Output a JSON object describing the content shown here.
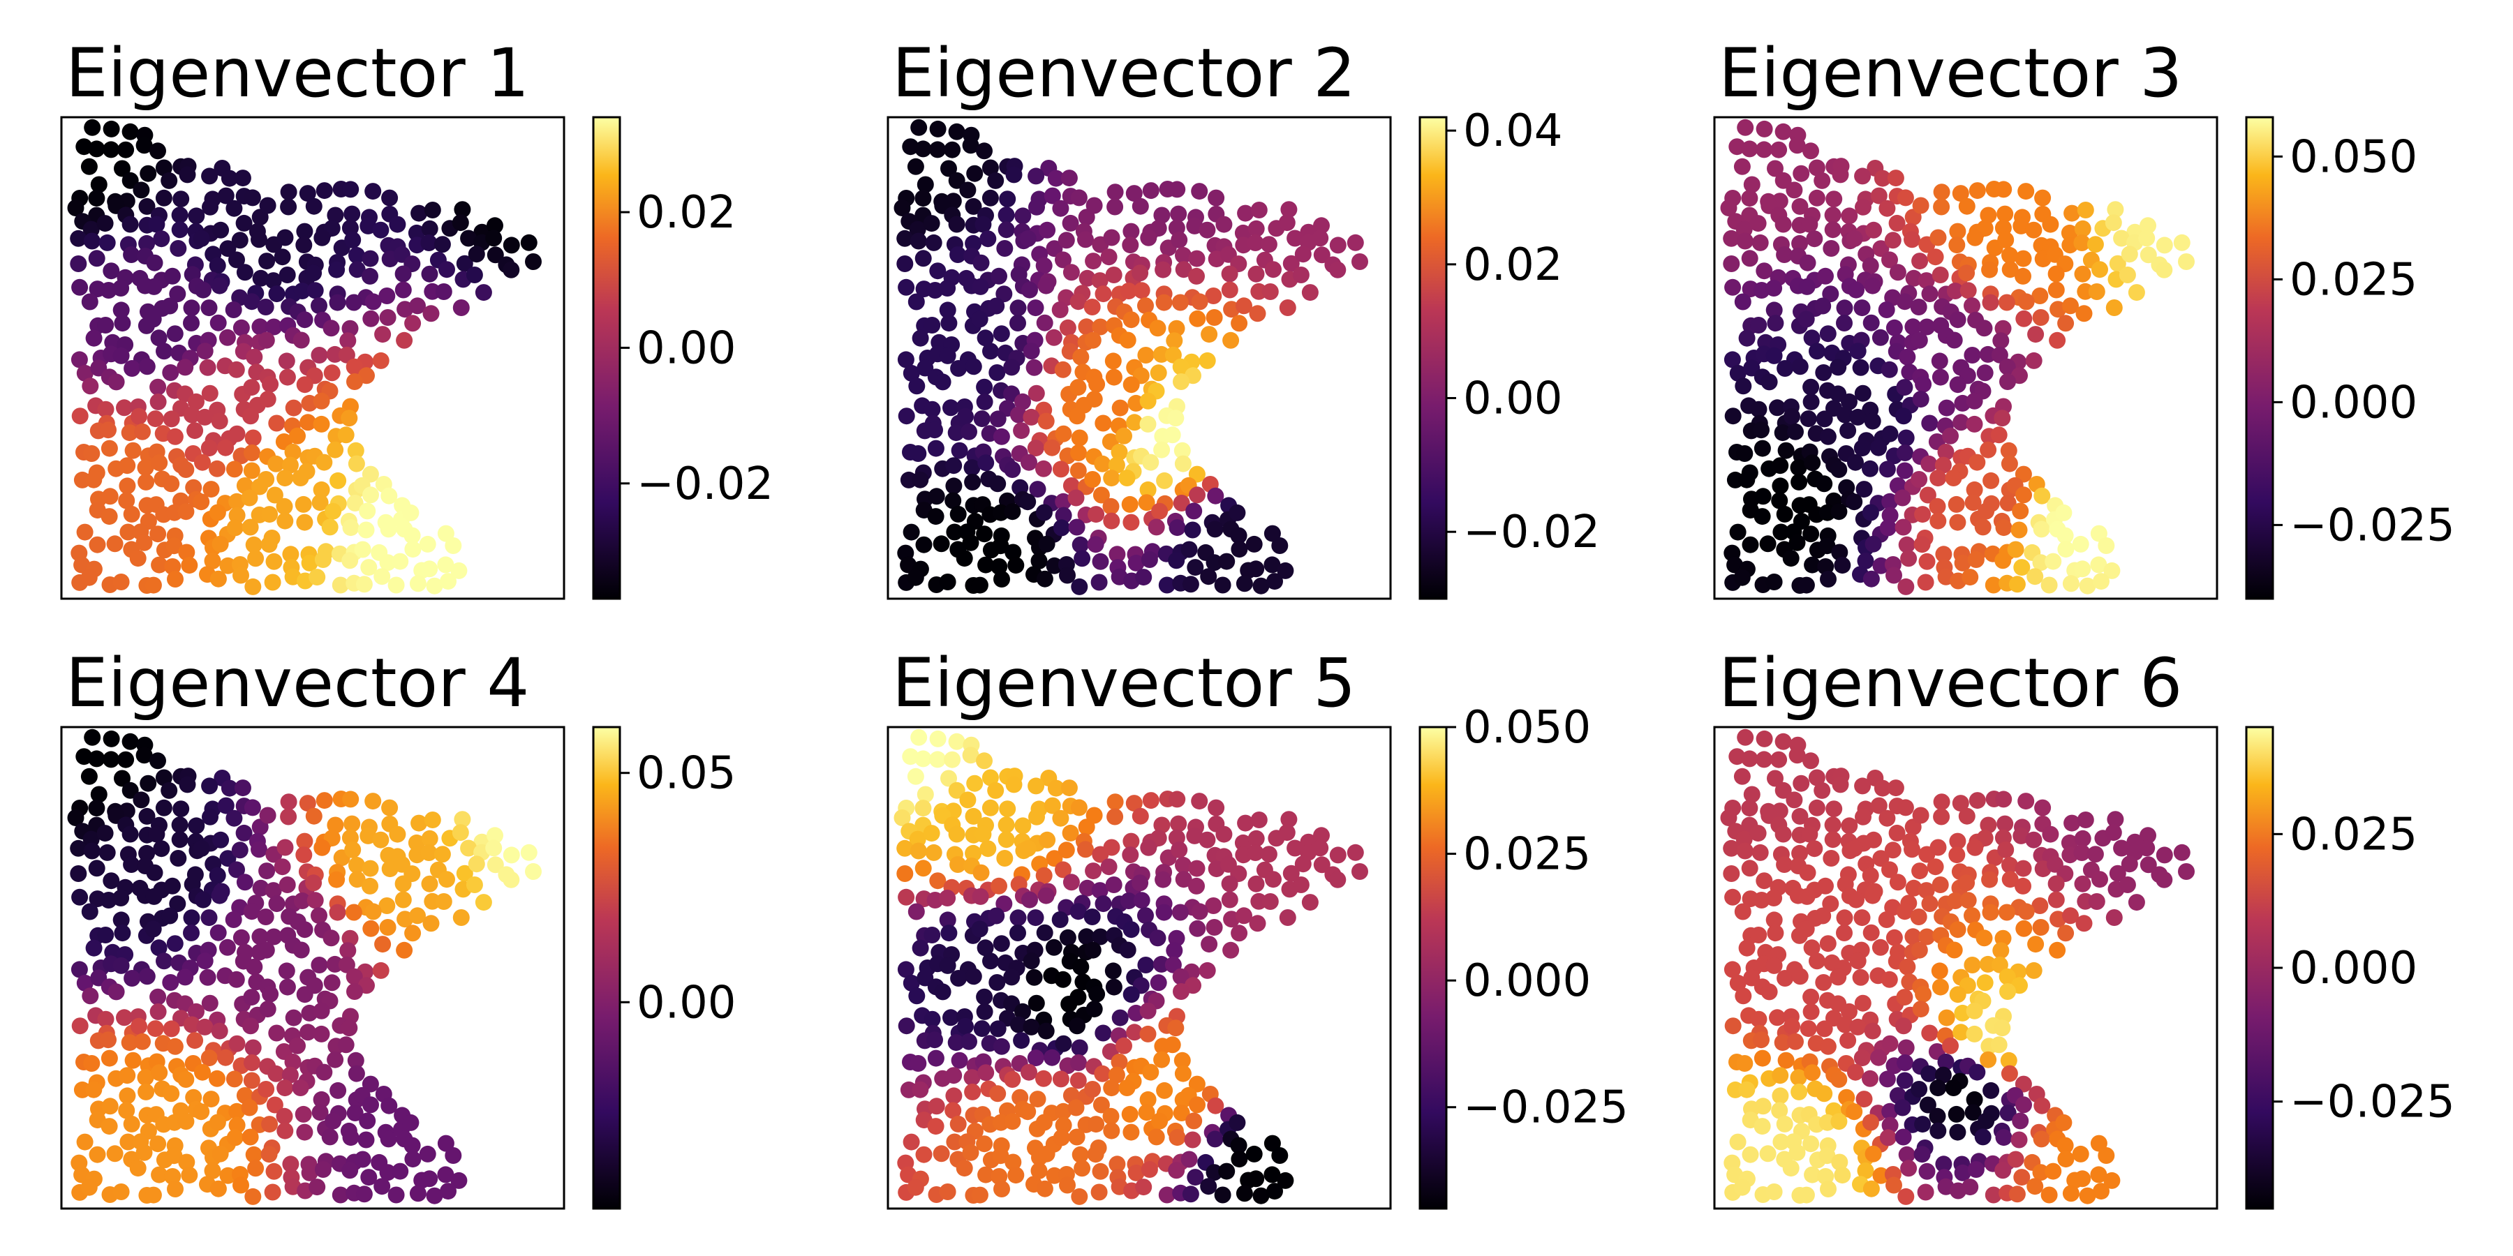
{
  "chart_data": [
    {
      "type": "scatter",
      "title": "Eigenvector 1",
      "colormap": "inferno",
      "colorbar": {
        "range": [
          -0.037,
          0.034
        ],
        "ticks": [
          -0.02,
          0.0,
          0.02
        ],
        "tick_labels": [
          "−0.02",
          "0.00",
          "0.02"
        ]
      },
      "value_field": {
        "anchors": [
          {
            "x": 0.05,
            "y": 0.95,
            "v": -0.037
          },
          {
            "x": 0.95,
            "y": 0.9,
            "v": -0.037
          },
          {
            "x": 0.4,
            "y": 0.75,
            "v": -0.03
          },
          {
            "x": 0.2,
            "y": 0.55,
            "v": -0.02
          },
          {
            "x": 0.3,
            "y": 0.4,
            "v": 0.0
          },
          {
            "x": 0.15,
            "y": 0.25,
            "v": 0.01
          },
          {
            "x": 0.45,
            "y": 0.2,
            "v": 0.02
          },
          {
            "x": 0.65,
            "y": 0.15,
            "v": 0.034
          },
          {
            "x": 0.75,
            "y": 0.1,
            "v": 0.034
          }
        ]
      }
    },
    {
      "type": "scatter",
      "title": "Eigenvector 2",
      "colormap": "inferno",
      "colorbar": {
        "range": [
          -0.03,
          0.042
        ],
        "ticks": [
          -0.02,
          0.0,
          0.02,
          0.04
        ],
        "tick_labels": [
          "−0.02",
          "0.00",
          "0.02",
          "0.04"
        ]
      },
      "value_field": {
        "anchors": [
          {
            "x": 0.05,
            "y": 0.95,
            "v": -0.028
          },
          {
            "x": 0.85,
            "y": 0.9,
            "v": 0.0
          },
          {
            "x": 0.55,
            "y": 0.9,
            "v": -0.005
          },
          {
            "x": 0.15,
            "y": 0.5,
            "v": -0.02
          },
          {
            "x": 0.55,
            "y": 0.35,
            "v": 0.042
          },
          {
            "x": 0.45,
            "y": 0.4,
            "v": 0.02
          },
          {
            "x": 0.2,
            "y": 0.1,
            "v": -0.03
          },
          {
            "x": 0.7,
            "y": 0.1,
            "v": -0.025
          }
        ]
      }
    },
    {
      "type": "scatter",
      "title": "Eigenvector 3",
      "colormap": "inferno",
      "colorbar": {
        "range": [
          -0.04,
          0.058
        ],
        "ticks": [
          -0.025,
          0.0,
          0.025,
          0.05
        ],
        "tick_labels": [
          "−0.025",
          "0.000",
          "0.025",
          "0.050"
        ]
      },
      "value_field": {
        "anchors": [
          {
            "x": 0.05,
            "y": 0.95,
            "v": 0.0
          },
          {
            "x": 0.9,
            "y": 0.8,
            "v": 0.055
          },
          {
            "x": 0.6,
            "y": 0.75,
            "v": 0.03
          },
          {
            "x": 0.15,
            "y": 0.2,
            "v": -0.04
          },
          {
            "x": 0.3,
            "y": 0.4,
            "v": -0.03
          },
          {
            "x": 0.45,
            "y": 0.5,
            "v": -0.01
          },
          {
            "x": 0.7,
            "y": 0.15,
            "v": 0.058
          },
          {
            "x": 0.55,
            "y": 0.2,
            "v": 0.02
          }
        ]
      }
    },
    {
      "type": "scatter",
      "title": "Eigenvector 4",
      "colormap": "inferno",
      "colorbar": {
        "range": [
          -0.045,
          0.06
        ],
        "ticks": [
          0.0,
          0.05
        ],
        "tick_labels": [
          "0.00",
          "0.05"
        ]
      },
      "value_field": {
        "anchors": [
          {
            "x": 0.05,
            "y": 0.95,
            "v": -0.045
          },
          {
            "x": 0.2,
            "y": 0.7,
            "v": -0.035
          },
          {
            "x": 0.95,
            "y": 0.8,
            "v": 0.06
          },
          {
            "x": 0.65,
            "y": 0.7,
            "v": 0.04
          },
          {
            "x": 0.45,
            "y": 0.55,
            "v": -0.01
          },
          {
            "x": 0.2,
            "y": 0.15,
            "v": 0.035
          },
          {
            "x": 0.7,
            "y": 0.15,
            "v": -0.015
          }
        ]
      }
    },
    {
      "type": "scatter",
      "title": "Eigenvector 5",
      "colormap": "inferno",
      "colorbar": {
        "range": [
          -0.045,
          0.05
        ],
        "ticks": [
          -0.025,
          0.0,
          0.025,
          0.05
        ],
        "tick_labels": [
          "−0.025",
          "0.000",
          "0.025",
          "0.050"
        ]
      },
      "value_field": {
        "anchors": [
          {
            "x": 0.05,
            "y": 0.95,
            "v": 0.05
          },
          {
            "x": 0.2,
            "y": 0.8,
            "v": 0.035
          },
          {
            "x": 0.85,
            "y": 0.8,
            "v": 0.0
          },
          {
            "x": 0.35,
            "y": 0.45,
            "v": -0.045
          },
          {
            "x": 0.2,
            "y": 0.5,
            "v": -0.035
          },
          {
            "x": 0.3,
            "y": 0.15,
            "v": 0.02
          },
          {
            "x": 0.55,
            "y": 0.25,
            "v": 0.025
          },
          {
            "x": 0.75,
            "y": 0.1,
            "v": -0.045
          }
        ]
      }
    },
    {
      "type": "scatter",
      "title": "Eigenvector 6",
      "colormap": "inferno",
      "colorbar": {
        "range": [
          -0.045,
          0.045
        ],
        "ticks": [
          -0.025,
          0.0,
          0.025
        ],
        "tick_labels": [
          "−0.025",
          "0.000",
          "0.025"
        ]
      },
      "value_field": {
        "anchors": [
          {
            "x": 0.05,
            "y": 0.95,
            "v": 0.0
          },
          {
            "x": 0.9,
            "y": 0.8,
            "v": -0.01
          },
          {
            "x": 0.5,
            "y": 0.25,
            "v": -0.045
          },
          {
            "x": 0.55,
            "y": 0.35,
            "v": 0.04
          },
          {
            "x": 0.15,
            "y": 0.1,
            "v": 0.04
          },
          {
            "x": 0.75,
            "y": 0.1,
            "v": 0.02
          },
          {
            "x": 0.2,
            "y": 0.5,
            "v": 0.005
          }
        ]
      }
    }
  ]
}
